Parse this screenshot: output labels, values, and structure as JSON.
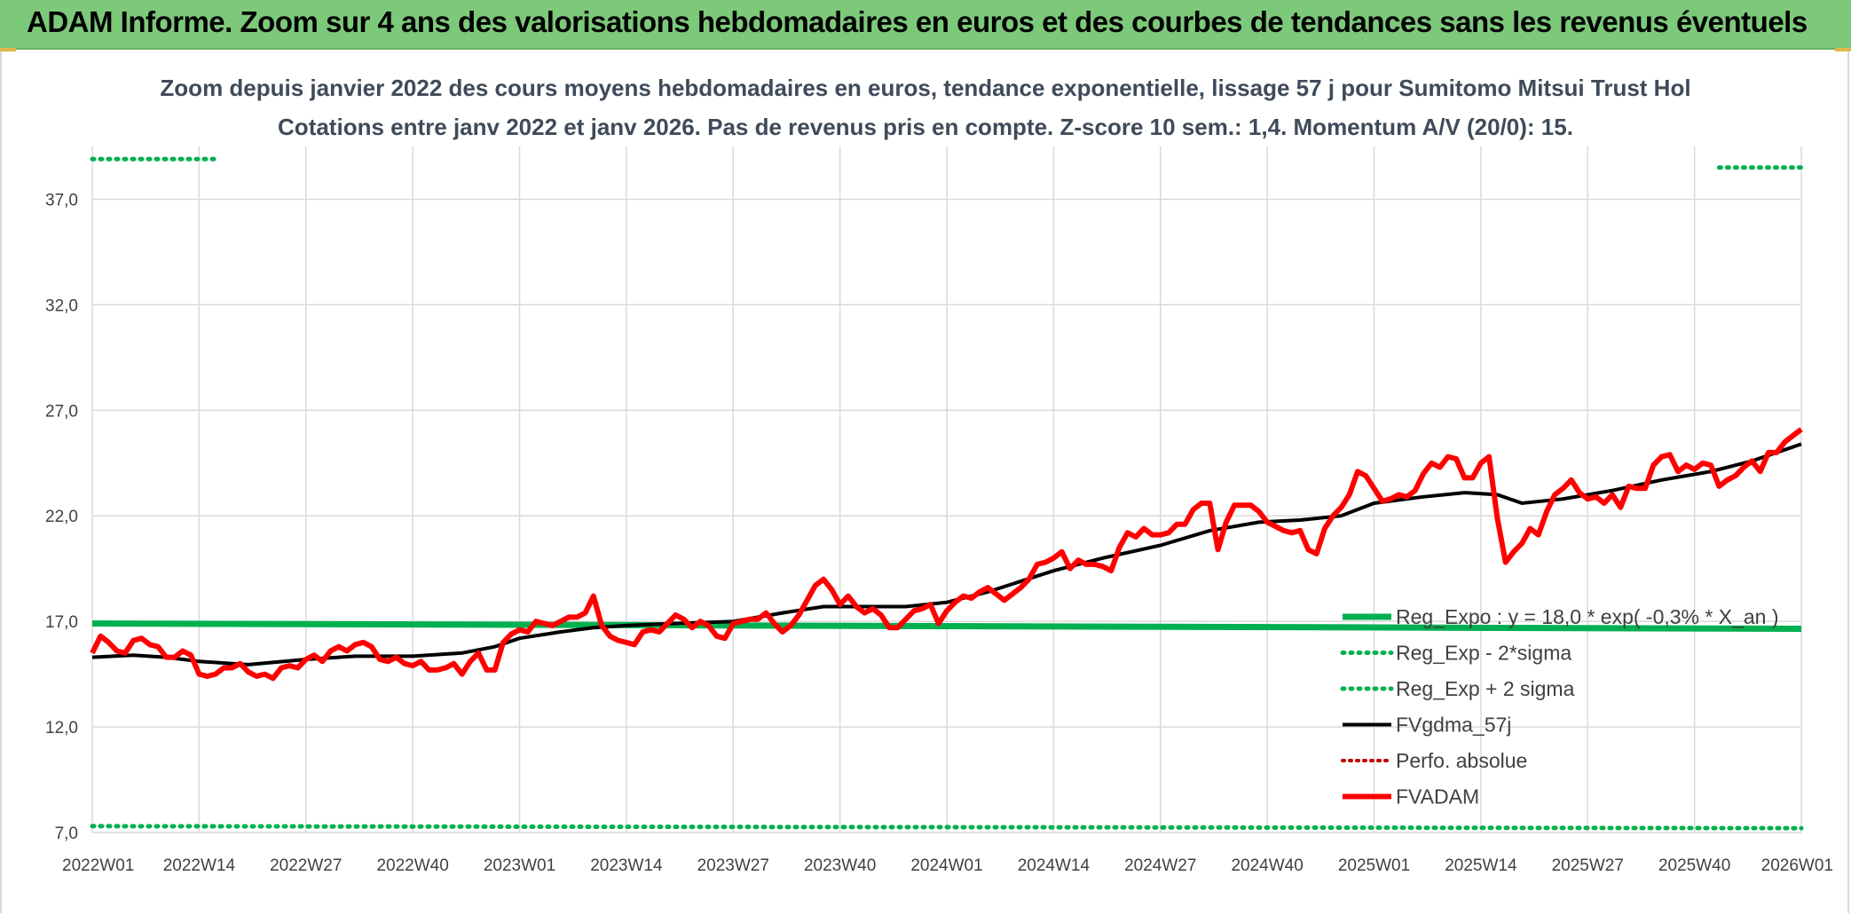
{
  "banner": {
    "title": "ADAM Informe. Zoom sur 4 ans des valorisations hebdomadaires en euros et des courbes de tendances sans les revenus éventuels"
  },
  "chart_data": {
    "type": "line",
    "title_line1": "Zoom depuis janvier 2022 des cours moyens hebdomadaires en euros, tendance exponentielle, lissage 57 j pour Sumitomo Mitsui Trust Hol",
    "title_line2": "Cotations entre janv 2022 et janv 2026. Pas de revenus pris en compte. Z-score 10 sem.: 1,4. Momentum A/V (20/0): 15.",
    "ylim": [
      7,
      39.5
    ],
    "y_ticks": [
      7,
      12,
      17,
      22,
      27,
      32,
      37
    ],
    "y_tick_labels": [
      "7,0",
      "12,0",
      "17,0",
      "22,0",
      "27,0",
      "32,0",
      "37,0"
    ],
    "x_range": [
      1,
      209
    ],
    "x_ticks": [
      1,
      14,
      27,
      40,
      53,
      66,
      79,
      92,
      105,
      118,
      131,
      144,
      157,
      170,
      183,
      196,
      209
    ],
    "x_tick_labels": [
      "2022W01",
      "2022W14",
      "2022W27",
      "2022W40",
      "2023W01",
      "2023W14",
      "2023W27",
      "2023W40",
      "2024W01",
      "2024W14",
      "2024W27",
      "2024W40",
      "2025W01",
      "2025W14",
      "2025W27",
      "2025W40",
      "2026W01"
    ],
    "colors": {
      "green": "#00b050",
      "black": "#000000",
      "red": "#ff0000",
      "grid": "#d9d9d9"
    },
    "series": [
      {
        "name": "Reg_Expo : y = 18,0 * exp( -0,3% *  X_an )",
        "style": "thick-green",
        "points": [
          [
            1,
            16.9
          ],
          [
            209,
            16.65
          ]
        ]
      },
      {
        "name": "Reg_Exp - 2*sigma",
        "style": "dotted-green",
        "points": [
          [
            1,
            7.3
          ],
          [
            209,
            7.2
          ]
        ]
      },
      {
        "name": "Reg_Exp + 2 sigma",
        "style": "dotted-green",
        "points": [
          [
            1,
            38.9
          ],
          [
            16,
            38.9
          ],
          [
            199,
            38.5
          ],
          [
            209,
            38.5
          ]
        ]
      },
      {
        "name": "FVgdma_57j",
        "style": "black",
        "points": [
          [
            1,
            15.3
          ],
          [
            6,
            15.4
          ],
          [
            10,
            15.3
          ],
          [
            14,
            15.1
          ],
          [
            20,
            14.95
          ],
          [
            27,
            15.2
          ],
          [
            33,
            15.35
          ],
          [
            40,
            15.35
          ],
          [
            46,
            15.5
          ],
          [
            50,
            15.8
          ],
          [
            53,
            16.2
          ],
          [
            58,
            16.5
          ],
          [
            62,
            16.7
          ],
          [
            66,
            16.8
          ],
          [
            72,
            16.9
          ],
          [
            79,
            17.0
          ],
          [
            85,
            17.4
          ],
          [
            90,
            17.7
          ],
          [
            96,
            17.7
          ],
          [
            100,
            17.7
          ],
          [
            105,
            17.9
          ],
          [
            110,
            18.4
          ],
          [
            118,
            19.4
          ],
          [
            124,
            20.0
          ],
          [
            131,
            20.6
          ],
          [
            137,
            21.3
          ],
          [
            143,
            21.7
          ],
          [
            148,
            21.8
          ],
          [
            153,
            22.0
          ],
          [
            157,
            22.6
          ],
          [
            163,
            22.9
          ],
          [
            168,
            23.1
          ],
          [
            172,
            23.0
          ],
          [
            175,
            22.6
          ],
          [
            180,
            22.8
          ],
          [
            186,
            23.2
          ],
          [
            192,
            23.7
          ],
          [
            198,
            24.1
          ],
          [
            203,
            24.6
          ],
          [
            209,
            25.4
          ]
        ]
      },
      {
        "name": "Perfo. absolue",
        "style": "dotted-red",
        "points": []
      },
      {
        "name": "FVADAM",
        "style": "thick-red",
        "points": [
          [
            1,
            15.5
          ],
          [
            2,
            16.3
          ],
          [
            3,
            16.0
          ],
          [
            4,
            15.6
          ],
          [
            5,
            15.5
          ],
          [
            6,
            16.1
          ],
          [
            7,
            16.2
          ],
          [
            8,
            15.9
          ],
          [
            9,
            15.8
          ],
          [
            10,
            15.3
          ],
          [
            11,
            15.3
          ],
          [
            12,
            15.6
          ],
          [
            13,
            15.4
          ],
          [
            14,
            14.5
          ],
          [
            15,
            14.4
          ],
          [
            16,
            14.5
          ],
          [
            17,
            14.8
          ],
          [
            18,
            14.8
          ],
          [
            19,
            15.0
          ],
          [
            20,
            14.6
          ],
          [
            21,
            14.4
          ],
          [
            22,
            14.5
          ],
          [
            23,
            14.3
          ],
          [
            24,
            14.8
          ],
          [
            25,
            14.9
          ],
          [
            26,
            14.8
          ],
          [
            27,
            15.2
          ],
          [
            28,
            15.4
          ],
          [
            29,
            15.1
          ],
          [
            30,
            15.6
          ],
          [
            31,
            15.8
          ],
          [
            32,
            15.6
          ],
          [
            33,
            15.9
          ],
          [
            34,
            16.0
          ],
          [
            35,
            15.8
          ],
          [
            36,
            15.2
          ],
          [
            37,
            15.1
          ],
          [
            38,
            15.3
          ],
          [
            39,
            15.0
          ],
          [
            40,
            14.9
          ],
          [
            41,
            15.1
          ],
          [
            42,
            14.7
          ],
          [
            43,
            14.7
          ],
          [
            44,
            14.8
          ],
          [
            45,
            15.0
          ],
          [
            46,
            14.5
          ],
          [
            47,
            15.1
          ],
          [
            48,
            15.5
          ],
          [
            49,
            14.7
          ],
          [
            50,
            14.7
          ],
          [
            51,
            16.0
          ],
          [
            52,
            16.4
          ],
          [
            53,
            16.6
          ],
          [
            54,
            16.5
          ],
          [
            55,
            17.0
          ],
          [
            56,
            16.9
          ],
          [
            57,
            16.8
          ],
          [
            58,
            17.0
          ],
          [
            59,
            17.2
          ],
          [
            60,
            17.2
          ],
          [
            61,
            17.4
          ],
          [
            62,
            18.2
          ],
          [
            63,
            16.8
          ],
          [
            64,
            16.3
          ],
          [
            65,
            16.1
          ],
          [
            66,
            16.0
          ],
          [
            67,
            15.9
          ],
          [
            68,
            16.5
          ],
          [
            69,
            16.6
          ],
          [
            70,
            16.5
          ],
          [
            71,
            16.9
          ],
          [
            72,
            17.3
          ],
          [
            73,
            17.1
          ],
          [
            74,
            16.7
          ],
          [
            75,
            17.0
          ],
          [
            76,
            16.8
          ],
          [
            77,
            16.3
          ],
          [
            78,
            16.2
          ],
          [
            79,
            16.9
          ],
          [
            80,
            17.0
          ],
          [
            81,
            17.1
          ],
          [
            82,
            17.1
          ],
          [
            83,
            17.4
          ],
          [
            84,
            16.9
          ],
          [
            85,
            16.5
          ],
          [
            86,
            16.8
          ],
          [
            87,
            17.3
          ],
          [
            88,
            18.0
          ],
          [
            89,
            18.7
          ],
          [
            90,
            19.0
          ],
          [
            91,
            18.5
          ],
          [
            92,
            17.8
          ],
          [
            93,
            18.2
          ],
          [
            94,
            17.7
          ],
          [
            95,
            17.4
          ],
          [
            96,
            17.6
          ],
          [
            97,
            17.3
          ],
          [
            98,
            16.7
          ],
          [
            99,
            16.7
          ],
          [
            100,
            17.1
          ],
          [
            101,
            17.5
          ],
          [
            102,
            17.6
          ],
          [
            103,
            17.8
          ],
          [
            104,
            16.9
          ],
          [
            105,
            17.5
          ],
          [
            106,
            17.9
          ],
          [
            107,
            18.2
          ],
          [
            108,
            18.1
          ],
          [
            109,
            18.4
          ],
          [
            110,
            18.6
          ],
          [
            111,
            18.3
          ],
          [
            112,
            18.0
          ],
          [
            113,
            18.3
          ],
          [
            114,
            18.6
          ],
          [
            115,
            19.0
          ],
          [
            116,
            19.7
          ],
          [
            117,
            19.8
          ],
          [
            118,
            20.0
          ],
          [
            119,
            20.3
          ],
          [
            120,
            19.5
          ],
          [
            121,
            19.9
          ],
          [
            122,
            19.7
          ],
          [
            123,
            19.7
          ],
          [
            124,
            19.6
          ],
          [
            125,
            19.4
          ],
          [
            126,
            20.5
          ],
          [
            127,
            21.2
          ],
          [
            128,
            21.0
          ],
          [
            129,
            21.4
          ],
          [
            130,
            21.1
          ],
          [
            131,
            21.1
          ],
          [
            132,
            21.2
          ],
          [
            133,
            21.6
          ],
          [
            134,
            21.6
          ],
          [
            135,
            22.3
          ],
          [
            136,
            22.6
          ],
          [
            137,
            22.6
          ],
          [
            138,
            20.4
          ],
          [
            139,
            21.7
          ],
          [
            140,
            22.5
          ],
          [
            141,
            22.5
          ],
          [
            142,
            22.5
          ],
          [
            143,
            22.2
          ],
          [
            144,
            21.7
          ],
          [
            145,
            21.5
          ],
          [
            146,
            21.3
          ],
          [
            147,
            21.2
          ],
          [
            148,
            21.3
          ],
          [
            149,
            20.4
          ],
          [
            150,
            20.2
          ],
          [
            151,
            21.4
          ],
          [
            152,
            22.0
          ],
          [
            153,
            22.4
          ],
          [
            154,
            23.0
          ],
          [
            155,
            24.1
          ],
          [
            156,
            23.9
          ],
          [
            157,
            23.3
          ],
          [
            158,
            22.7
          ],
          [
            159,
            22.8
          ],
          [
            160,
            23.0
          ],
          [
            161,
            22.9
          ],
          [
            162,
            23.2
          ],
          [
            163,
            24.0
          ],
          [
            164,
            24.5
          ],
          [
            165,
            24.3
          ],
          [
            166,
            24.8
          ],
          [
            167,
            24.7
          ],
          [
            168,
            23.8
          ],
          [
            169,
            23.8
          ],
          [
            170,
            24.5
          ],
          [
            171,
            24.8
          ],
          [
            172,
            21.9
          ],
          [
            173,
            19.8
          ],
          [
            174,
            20.3
          ],
          [
            175,
            20.7
          ],
          [
            176,
            21.4
          ],
          [
            177,
            21.1
          ],
          [
            178,
            22.2
          ],
          [
            179,
            23.0
          ],
          [
            180,
            23.3
          ],
          [
            181,
            23.7
          ],
          [
            182,
            23.1
          ],
          [
            183,
            22.8
          ],
          [
            184,
            22.9
          ],
          [
            185,
            22.6
          ],
          [
            186,
            23.0
          ],
          [
            187,
            22.4
          ],
          [
            188,
            23.4
          ],
          [
            189,
            23.3
          ],
          [
            190,
            23.3
          ],
          [
            191,
            24.4
          ],
          [
            192,
            24.8
          ],
          [
            193,
            24.9
          ],
          [
            194,
            24.1
          ],
          [
            195,
            24.4
          ],
          [
            196,
            24.2
          ],
          [
            197,
            24.5
          ],
          [
            198,
            24.4
          ],
          [
            199,
            23.4
          ],
          [
            200,
            23.7
          ],
          [
            201,
            23.9
          ],
          [
            202,
            24.3
          ],
          [
            203,
            24.6
          ],
          [
            204,
            24.1
          ],
          [
            205,
            25.0
          ],
          [
            206,
            25.0
          ],
          [
            207,
            25.5
          ],
          [
            208,
            25.8
          ],
          [
            209,
            26.1
          ]
        ]
      }
    ]
  }
}
